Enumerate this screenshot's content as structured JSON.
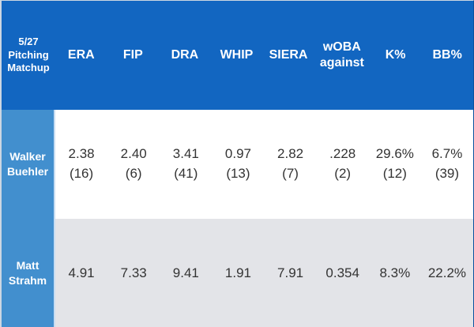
{
  "chart_data": {
    "type": "table",
    "title": "5/27 Pitching Matchup",
    "columns": [
      "ERA",
      "FIP",
      "DRA",
      "WHIP",
      "SIERA",
      "wOBA against",
      "K%",
      "BB%"
    ],
    "rows": [
      {
        "player": "Walker Buehler",
        "values": [
          "2.38",
          "2.40",
          "3.41",
          "0.97",
          "2.82",
          ".228",
          "29.6%",
          "6.7%"
        ],
        "ranks": [
          "(16)",
          "(6)",
          "(41)",
          "(13)",
          "(7)",
          "(2)",
          "(12)",
          "(39)"
        ]
      },
      {
        "player": "Matt Strahm",
        "values": [
          "4.91",
          "7.33",
          "9.41",
          "1.91",
          "7.91",
          "0.354",
          "8.3%",
          "22.2%"
        ],
        "ranks": [
          "",
          "",
          "",
          "",
          "",
          "",
          "",
          ""
        ]
      }
    ],
    "legend": "none",
    "grid": "off"
  },
  "colors": {
    "header_bg": "#1266C1",
    "player_bg": "#428FCE",
    "alt_row_bg": "#E3E4E8",
    "header_text": "#FFFFFF",
    "value_text": "#333333"
  }
}
